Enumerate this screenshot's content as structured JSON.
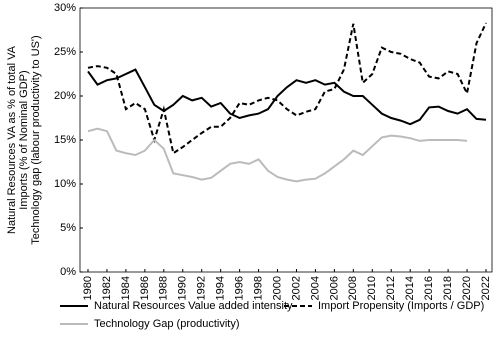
{
  "chart_data": {
    "type": "line",
    "ylabel": [
      "Natural Resources VA as % of total VA",
      "Imports (% of Nominal GDP)",
      "Technology gap (labour productivity to US')"
    ],
    "x": [
      1980,
      1981,
      1982,
      1983,
      1984,
      1985,
      1986,
      1987,
      1988,
      1989,
      1990,
      1991,
      1992,
      1993,
      1994,
      1995,
      1996,
      1997,
      1998,
      1999,
      2000,
      2001,
      2002,
      2003,
      2004,
      2005,
      2006,
      2007,
      2008,
      2009,
      2010,
      2011,
      2012,
      2013,
      2014,
      2015,
      2016,
      2017,
      2018,
      2019,
      2020,
      2021,
      2022
    ],
    "xlim": [
      1980,
      2022
    ],
    "xticks": [
      1980,
      1982,
      1984,
      1986,
      1988,
      1990,
      1992,
      1994,
      1996,
      1998,
      2000,
      2002,
      2004,
      2006,
      2008,
      2010,
      2012,
      2014,
      2016,
      2018,
      2020,
      2022
    ],
    "ylim": [
      0,
      30
    ],
    "yticks": [
      {
        "value": 0,
        "label": "0%"
      },
      {
        "value": 5,
        "label": "5%"
      },
      {
        "value": 10,
        "label": "10%"
      },
      {
        "value": 15,
        "label": "15%"
      },
      {
        "value": 20,
        "label": "20%"
      },
      {
        "value": 25,
        "label": "25%"
      },
      {
        "value": 30,
        "label": "30%"
      }
    ],
    "legend": "bottom",
    "series": [
      {
        "name": "Natural Resources Value added intensity",
        "color": "#000000",
        "linestyle": "solid",
        "values": [
          22.8,
          21.3,
          21.8,
          22.0,
          22.5,
          23.0,
          21.0,
          19.0,
          18.3,
          19.0,
          20.0,
          19.5,
          19.8,
          18.8,
          19.2,
          18.0,
          17.5,
          17.8,
          18.0,
          18.5,
          20.0,
          21.0,
          21.8,
          21.5,
          21.8,
          21.3,
          21.5,
          20.5,
          20.0,
          20.0,
          19.0,
          18.0,
          17.5,
          17.2,
          16.8,
          17.3,
          18.7,
          18.8,
          18.3,
          18.0,
          18.5,
          17.4,
          17.3
        ]
      },
      {
        "name": "Import Propensity (Imports / GDP)",
        "color": "#000000",
        "linestyle": "dashed",
        "values": [
          23.2,
          23.4,
          23.2,
          22.5,
          18.5,
          19.2,
          18.5,
          15.0,
          18.5,
          13.5,
          14.2,
          15.0,
          15.8,
          16.5,
          16.5,
          17.5,
          19.2,
          19.0,
          19.5,
          19.8,
          19.5,
          18.5,
          17.8,
          18.2,
          18.5,
          20.5,
          20.8,
          23.0,
          28.2,
          21.5,
          22.5,
          25.5,
          25.0,
          24.8,
          24.2,
          23.8,
          22.2,
          22.0,
          22.8,
          22.5,
          20.3,
          26.0,
          28.3
        ]
      },
      {
        "name": "Technology Gap (productivity)",
        "color": "#bbbbbb",
        "linestyle": "solid",
        "values": [
          16.0,
          16.3,
          16.0,
          13.8,
          13.5,
          13.3,
          13.8,
          15.0,
          14.0,
          11.2,
          11.0,
          10.8,
          10.5,
          10.7,
          11.5,
          12.3,
          12.5,
          12.3,
          12.8,
          11.5,
          10.8,
          10.5,
          10.3,
          10.5,
          10.6,
          11.2,
          12.0,
          12.8,
          13.8,
          13.3,
          14.3,
          15.3,
          15.5,
          15.4,
          15.2,
          14.9,
          15.0,
          15.0,
          15.0,
          15.0,
          14.9,
          null,
          null
        ]
      }
    ]
  }
}
